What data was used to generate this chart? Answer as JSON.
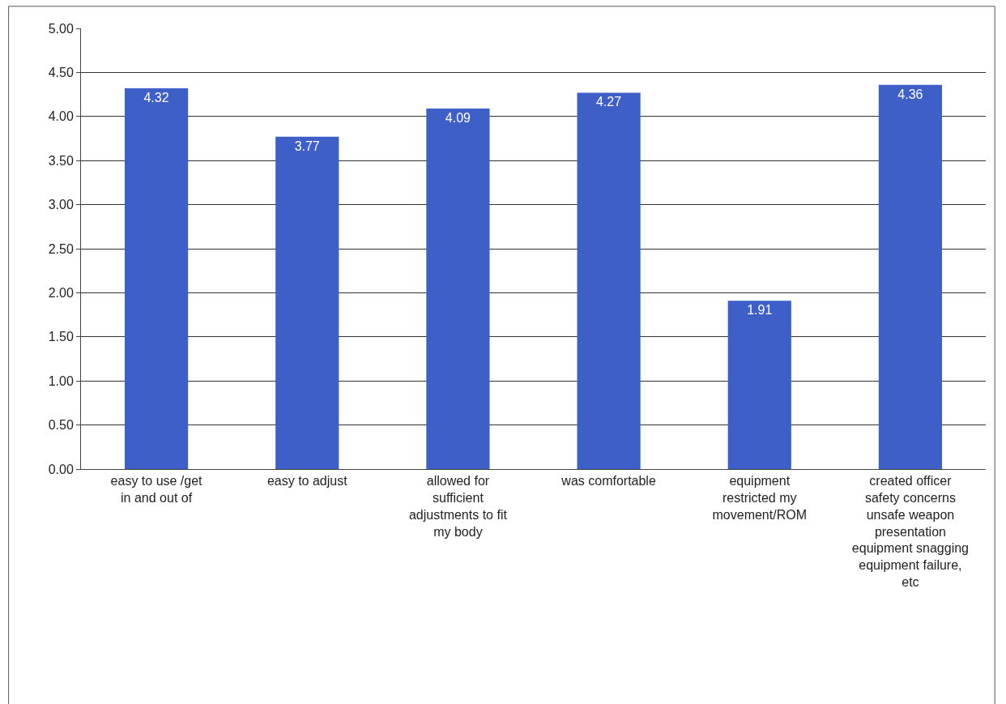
{
  "chart_data": {
    "type": "bar",
    "categories": [
      "easy to use /get in and out of",
      "easy to adjust",
      "allowed for sufficient adjustments to fit my body",
      "was comfortable",
      "equipment restricted my movement/ROM",
      "created officer safety concerns unsafe weapon presentation equipment snagging equipment failure, etc"
    ],
    "values": [
      4.32,
      3.77,
      4.09,
      4.27,
      1.91,
      4.36
    ],
    "color": "#3f5fc8",
    "ylim": [
      0,
      5
    ],
    "yticks": [
      {
        "value": 0,
        "label": "0.00"
      },
      {
        "value": 0.5,
        "label": "0.50"
      },
      {
        "value": 1,
        "label": "1.00"
      },
      {
        "value": 1.5,
        "label": "1.50"
      },
      {
        "value": 2,
        "label": "2.00"
      },
      {
        "value": 2.5,
        "label": "2.50"
      },
      {
        "value": 3,
        "label": "3.00"
      },
      {
        "value": 3.5,
        "label": "3.50"
      },
      {
        "value": 4,
        "label": "4.00"
      },
      {
        "value": 4.5,
        "label": "4.50"
      },
      {
        "value": 5,
        "label": "5.00"
      }
    ],
    "grid": "y",
    "data_labels": true
  }
}
